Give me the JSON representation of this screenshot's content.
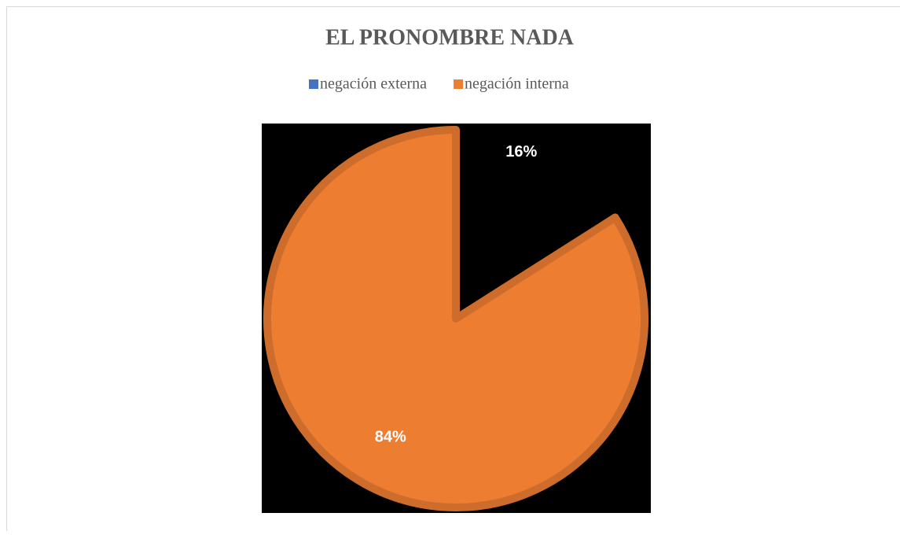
{
  "chart_data": {
    "type": "pie",
    "title": "EL PRONOMBRE NADA",
    "categories": [
      "negación externa",
      "negación interna"
    ],
    "values": [
      16,
      84
    ],
    "value_labels": [
      "16%",
      "84%"
    ],
    "colors": [
      "#000000",
      "#ed7d31"
    ],
    "legend_colors": [
      "#4472c4",
      "#ed7d31"
    ],
    "legend": "top"
  }
}
